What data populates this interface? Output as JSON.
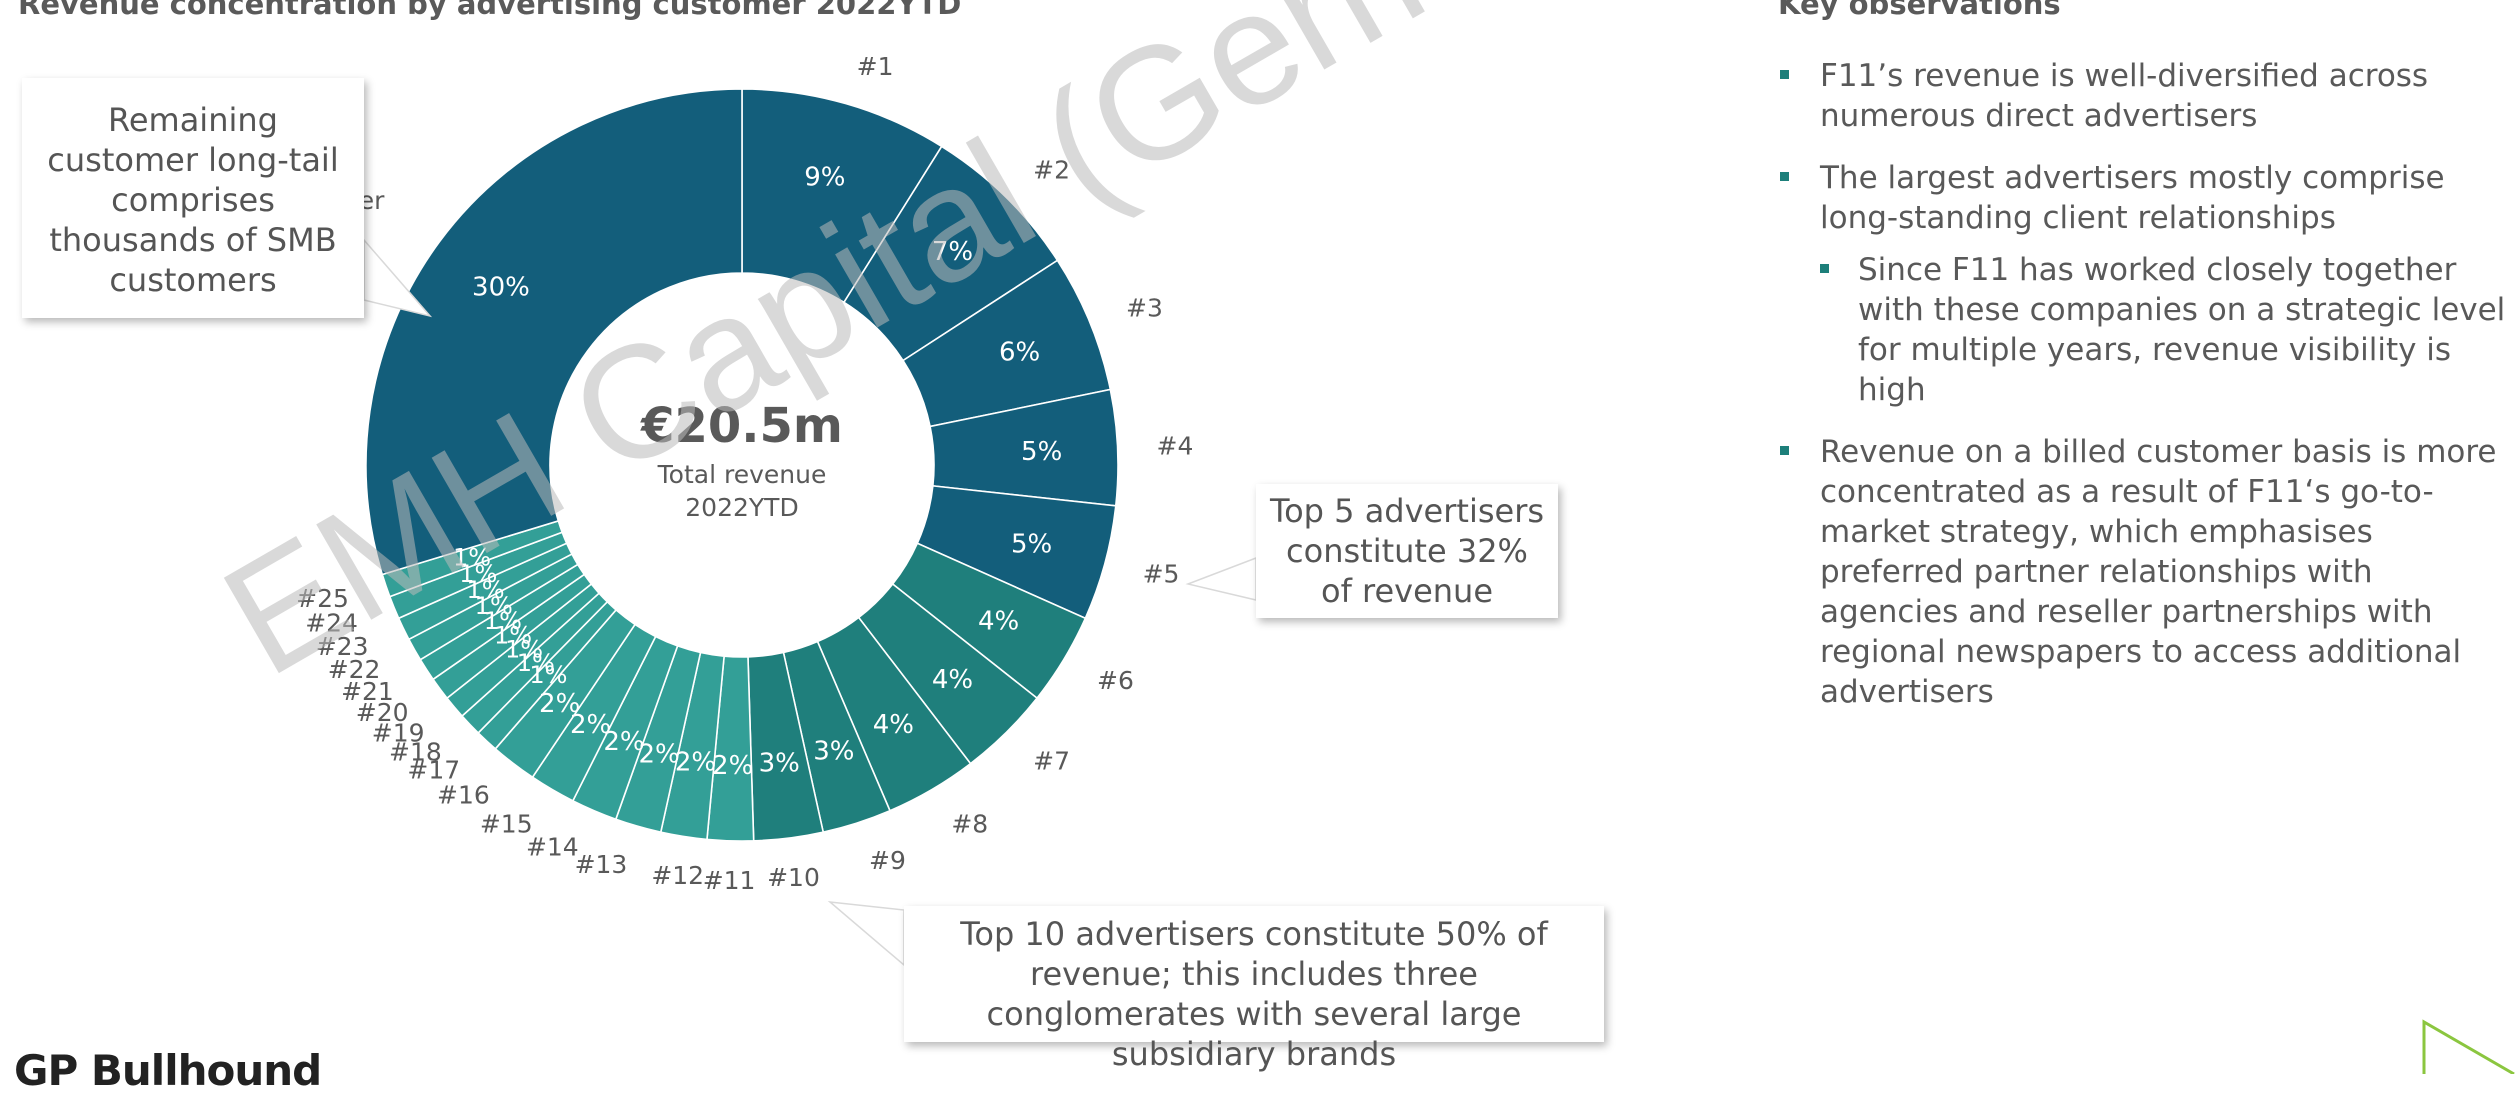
{
  "header": {
    "chart_title": "Revenue concentration by advertising customer 2022YTD",
    "observations_title": "Key observations"
  },
  "chart_data": {
    "type": "pie",
    "categories": [
      "#1",
      "#2",
      "#3",
      "#4",
      "#5",
      "#6",
      "#7",
      "#8",
      "#9",
      "#10",
      "#11",
      "#12",
      "#13",
      "#14",
      "#15",
      "#16",
      "#17",
      "#18",
      "#19",
      "#20",
      "#21",
      "#22",
      "#23",
      "#24",
      "#25",
      "Other"
    ],
    "values": [
      9,
      7,
      6,
      5,
      5,
      4,
      4,
      4,
      3,
      3,
      2,
      2,
      2,
      2,
      2,
      2,
      1,
      1,
      1,
      1,
      1,
      1,
      1,
      1,
      1,
      30
    ],
    "value_labels": [
      "9%",
      "7%",
      "6%",
      "5%",
      "5%",
      "4%",
      "4%",
      "4%",
      "3%",
      "3%",
      "2%",
      "2%",
      "2%",
      "2%",
      "2%",
      "2%",
      "1%",
      "1%",
      "1%",
      "1%",
      "1%",
      "1%",
      "1%",
      "1%",
      "1%",
      "30%"
    ],
    "center_value": "€20.5m",
    "center_label_line1": "Total revenue",
    "center_label_line2": "2022YTD",
    "colors": {
      "top5": "#135e7b",
      "mid": "#1f7f7c",
      "tail": "#339f97",
      "other": "#135e7b",
      "separator": "#ffffff"
    }
  },
  "callouts": {
    "other": "Remaining customer long-tail comprises thousands of SMB customers",
    "top5": "Top 5 advertisers constitute 32% of revenue",
    "top10": "Top 10 advertisers constitute 50% of revenue; this includes three conglomerates with several large subsidiary brands"
  },
  "observations": [
    {
      "text": "F11’s revenue is well-diversified across numerous direct advertisers",
      "level": 1
    },
    {
      "text": "The largest advertisers mostly comprise long-standing client relationships",
      "level": 1
    },
    {
      "text": "Since F11 has worked closely together with these companies on a strategic level for multiple years, revenue visibility is high",
      "level": 2
    },
    {
      "text": "Revenue on a billed customer basis is more concentrated as a result of F11‘s go-to-market strategy, which emphasises preferred partner relationships with agencies and reseller partnerships with regional newspapers to access additional advertisers",
      "level": 1
    }
  ],
  "footer": {
    "brand": "GP Bullhound"
  },
  "watermark": "EMH Capital (Germany) GmbH",
  "logo_icon": "triangle-outline-icon"
}
